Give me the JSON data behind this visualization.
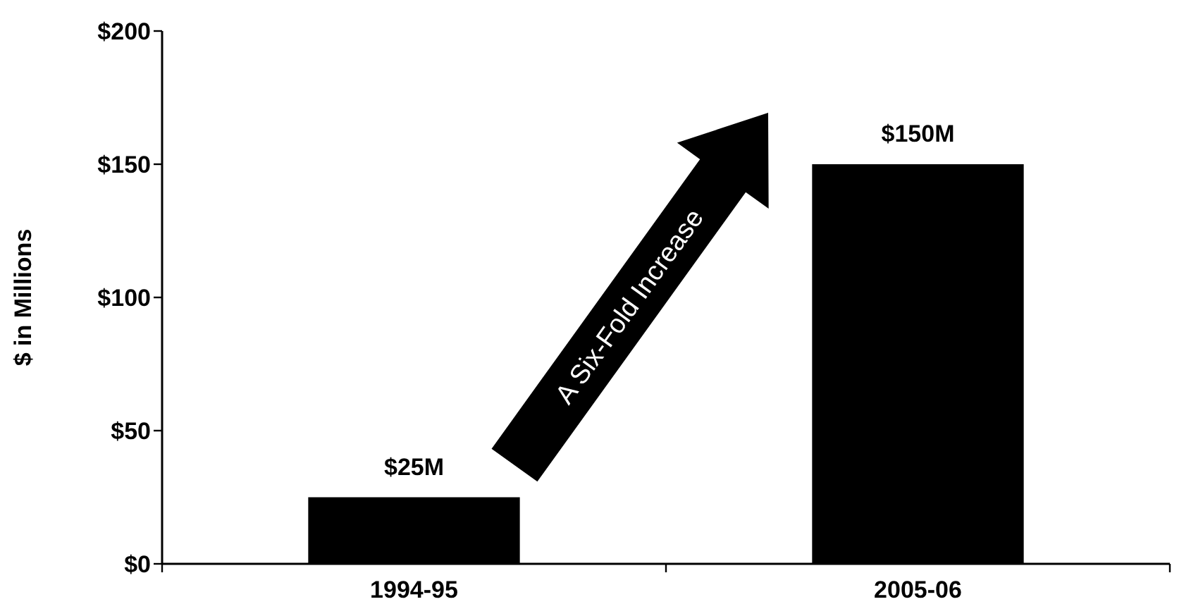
{
  "chart_data": {
    "type": "bar",
    "ylabel": "$ in Millions",
    "categories": [
      "1994-95",
      "2005-06"
    ],
    "values": [
      25,
      150
    ],
    "color": "#000000",
    "value_labels": [
      "$25M",
      "$150M"
    ],
    "ylim": [
      0,
      200
    ],
    "yticks": [
      {
        "value": 0,
        "label": "$0"
      },
      {
        "value": 50,
        "label": "$50"
      },
      {
        "value": 100,
        "label": "$100"
      },
      {
        "value": 150,
        "label": "$150"
      },
      {
        "value": 200,
        "label": "$200"
      }
    ],
    "grid": false,
    "annotations": [
      "A Six-Fold Increase"
    ]
  }
}
